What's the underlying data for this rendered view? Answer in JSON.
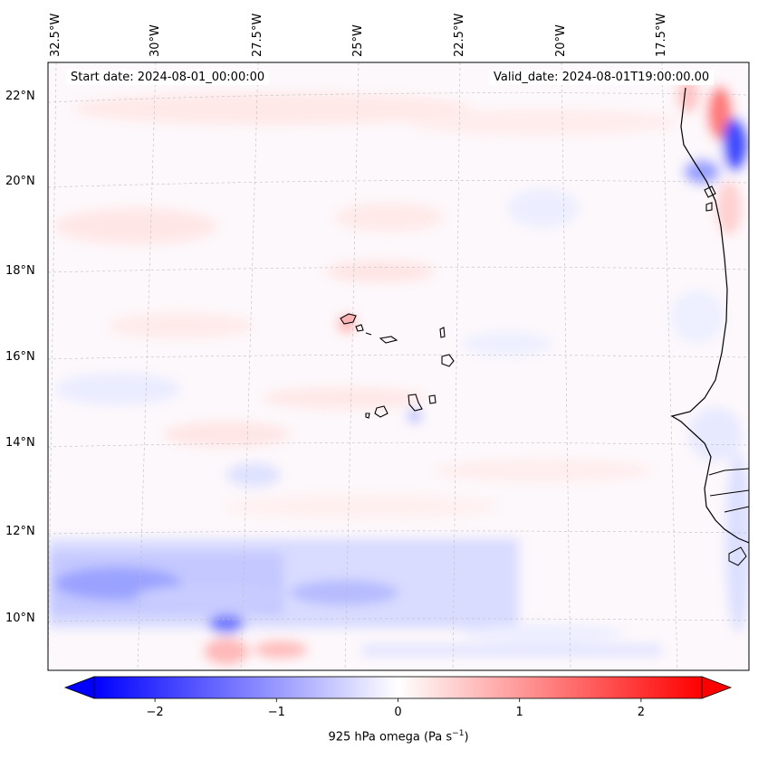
{
  "map": {
    "start_label": "Start date: 2024-08-01_00:00:00",
    "valid_label": "Valid_date: 2024-08-01T19:00:00.00",
    "lon_labels": [
      "32.5°W",
      "30°W",
      "27.5°W",
      "25°W",
      "22.5°W",
      "20°W",
      "17.5°W"
    ],
    "lat_labels": [
      "22°N",
      "20°N",
      "18°N",
      "16°N",
      "14°N",
      "12°N",
      "10°N"
    ],
    "colors": {
      "negative": "#0000ff",
      "neutral": "#ffffff",
      "positive": "#ff0000",
      "coast": "#000000",
      "grid": "#bbbbbb"
    }
  },
  "colorbar": {
    "min": -2.5,
    "max": 2.5,
    "ticks": [
      -2,
      -1,
      0,
      1,
      2
    ],
    "tick_labels": [
      "−2",
      "−1",
      "0",
      "1",
      "2"
    ],
    "label_text": "925 hPa omega (Pa s",
    "label_exp": "−1",
    "label_close": ")"
  }
}
